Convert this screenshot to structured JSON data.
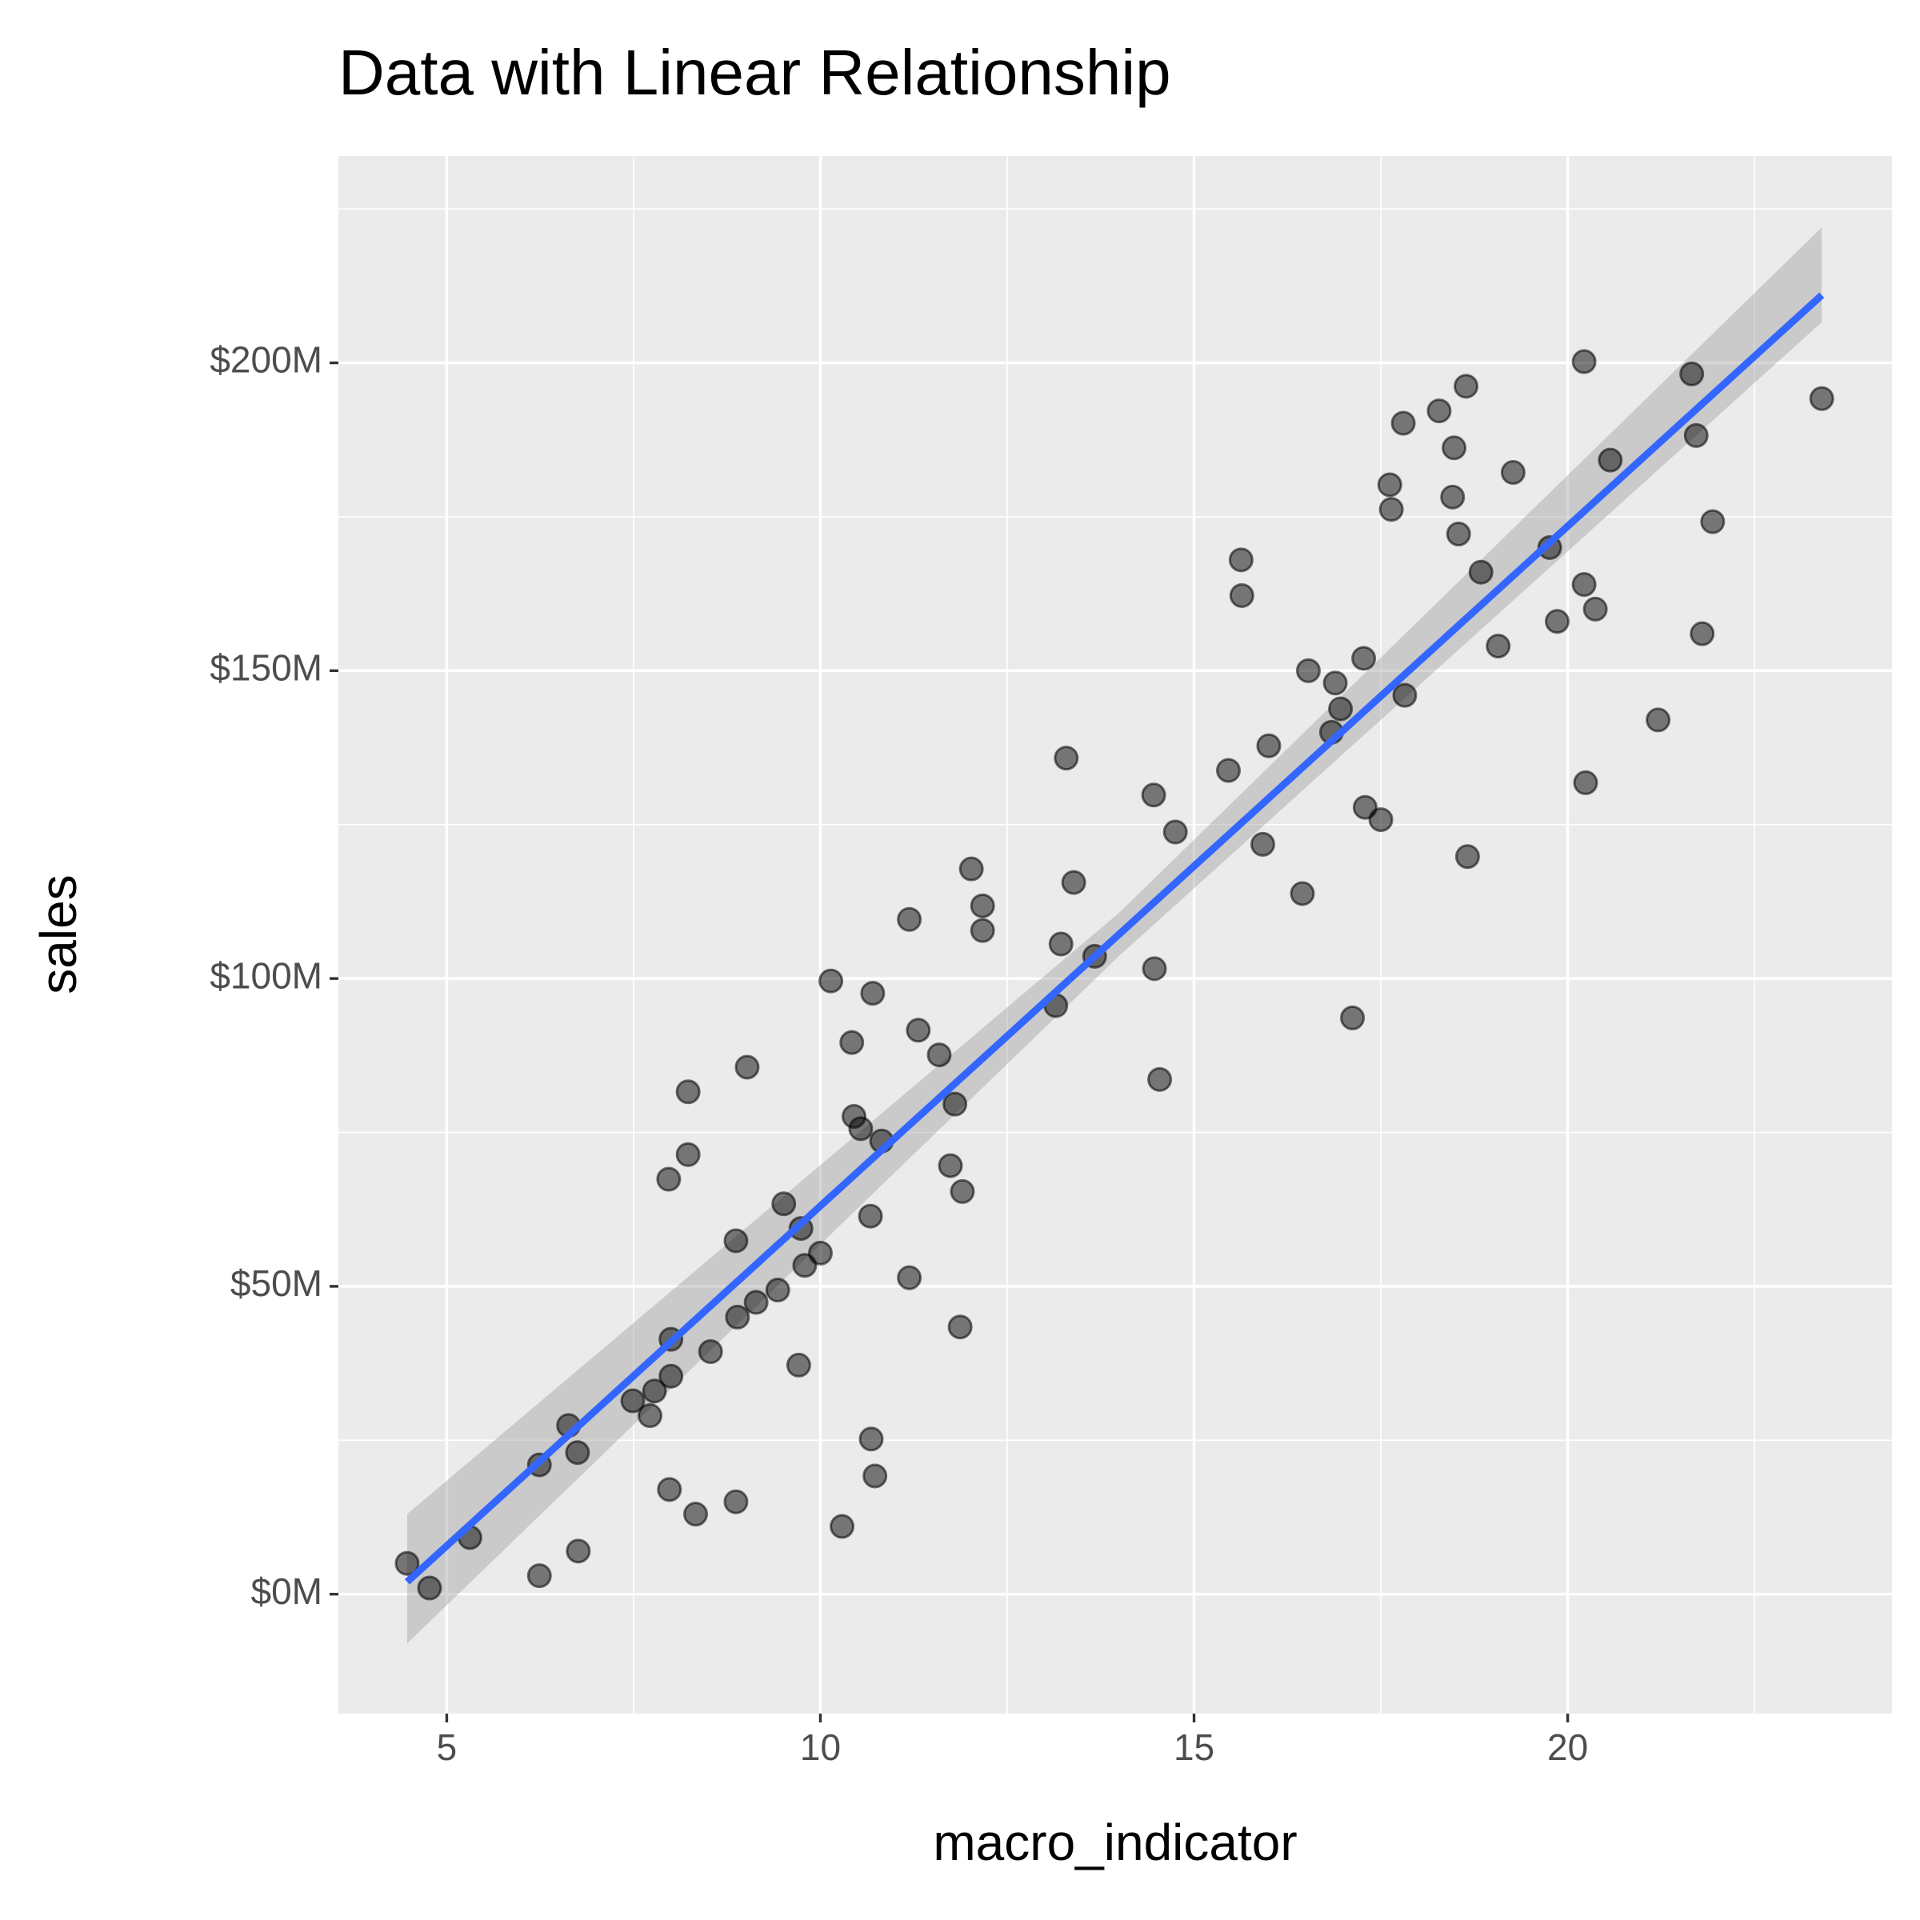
{
  "chart_data": {
    "type": "scatter",
    "title": "Data with Linear Relationship",
    "x_label": "macro_indicator",
    "y_label": "sales",
    "xlim": [
      3.55,
      24.34
    ],
    "ylim": [
      -19400000,
      233600000
    ],
    "xticks": [
      5,
      10,
      15,
      20
    ],
    "yticks": [
      {
        "value": 0,
        "label": "$0M"
      },
      {
        "value": 50000000,
        "label": "$50M"
      },
      {
        "value": 100000000,
        "label": "$100M"
      },
      {
        "value": 150000000,
        "label": "$150M"
      },
      {
        "value": 200000000,
        "label": "$200M"
      }
    ],
    "grid": true,
    "color": "#000000",
    "x": [
      4.47,
      4.77,
      5.31,
      6.24,
      6.24,
      6.63,
      6.75,
      6.76,
      7.49,
      7.72,
      7.78,
      8.0,
      8.0,
      7.97,
      8.23,
      8.23,
      7.98,
      8.33,
      8.53,
      8.87,
      8.89,
      8.87,
      9.02,
      9.14,
      9.43,
      9.51,
      9.71,
      9.74,
      9.79,
      10.0,
      10.14,
      10.29,
      10.42,
      10.45,
      10.54,
      10.67,
      10.7,
      10.68,
      10.73,
      10.82,
      11.19,
      11.19,
      11.31,
      11.59,
      11.74,
      11.8,
      11.9,
      11.87,
      12.02,
      12.17,
      12.17,
      13.15,
      13.22,
      13.29,
      13.39,
      13.67,
      14.46,
      14.47,
      14.54,
      14.75,
      15.46,
      15.63,
      15.64,
      15.92,
      16.0,
      16.45,
      16.53,
      16.84,
      16.89,
      16.96,
      17.12,
      17.27,
      17.29,
      17.5,
      17.62,
      17.64,
      17.8,
      17.82,
      18.28,
      18.46,
      18.48,
      18.54,
      18.64,
      18.66,
      18.84,
      19.07,
      19.27,
      19.76,
      19.86,
      20.22,
      20.22,
      20.24,
      20.37,
      20.57,
      21.21,
      21.66,
      21.72,
      21.8,
      21.94,
      23.4
    ],
    "values": [
      5000000,
      1000000,
      9200000,
      21000000,
      3000000,
      27400000,
      23000000,
      7000000,
      31400000,
      29000000,
      33000000,
      41400000,
      35400000,
      67400000,
      71400000,
      81600000,
      17000000,
      13000000,
      39400000,
      57400000,
      45000000,
      15000000,
      85600000,
      47400000,
      49400000,
      63400000,
      37200000,
      59400000,
      53400000,
      55400000,
      99600000,
      11000000,
      89600000,
      77600000,
      75600000,
      61400000,
      97600000,
      25200000,
      19200000,
      73600000,
      51400000,
      109600000,
      91600000,
      87600000,
      69600000,
      79600000,
      65400000,
      43400000,
      117800000,
      111800000,
      107800000,
      95600000,
      105600000,
      135800000,
      115600000,
      103600000,
      129800000,
      101600000,
      83600000,
      123800000,
      133800000,
      168000000,
      162200000,
      121800000,
      137800000,
      113800000,
      150000000,
      140000000,
      148000000,
      143800000,
      93600000,
      152000000,
      127800000,
      125800000,
      180200000,
      176200000,
      190200000,
      146000000,
      192200000,
      178200000,
      186200000,
      172200000,
      196200000,
      119800000,
      166000000,
      154000000,
      182200000,
      170000000,
      158000000,
      200200000,
      164000000,
      131800000,
      160000000,
      184200000,
      142000000,
      198200000,
      188200000,
      156000000,
      174200000,
      194200000
    ],
    "trend": {
      "x": [
        4.47,
        23.4
      ],
      "values": [
        2000000,
        211000000
      ],
      "color": "#3366ff"
    },
    "band": {
      "x": [
        4.47,
        14,
        23.4
      ],
      "upper": [
        13000000,
        110700000,
        222000000
      ],
      "lower": [
        -8000000,
        103700000,
        206600000
      ],
      "color": "#999999"
    }
  }
}
